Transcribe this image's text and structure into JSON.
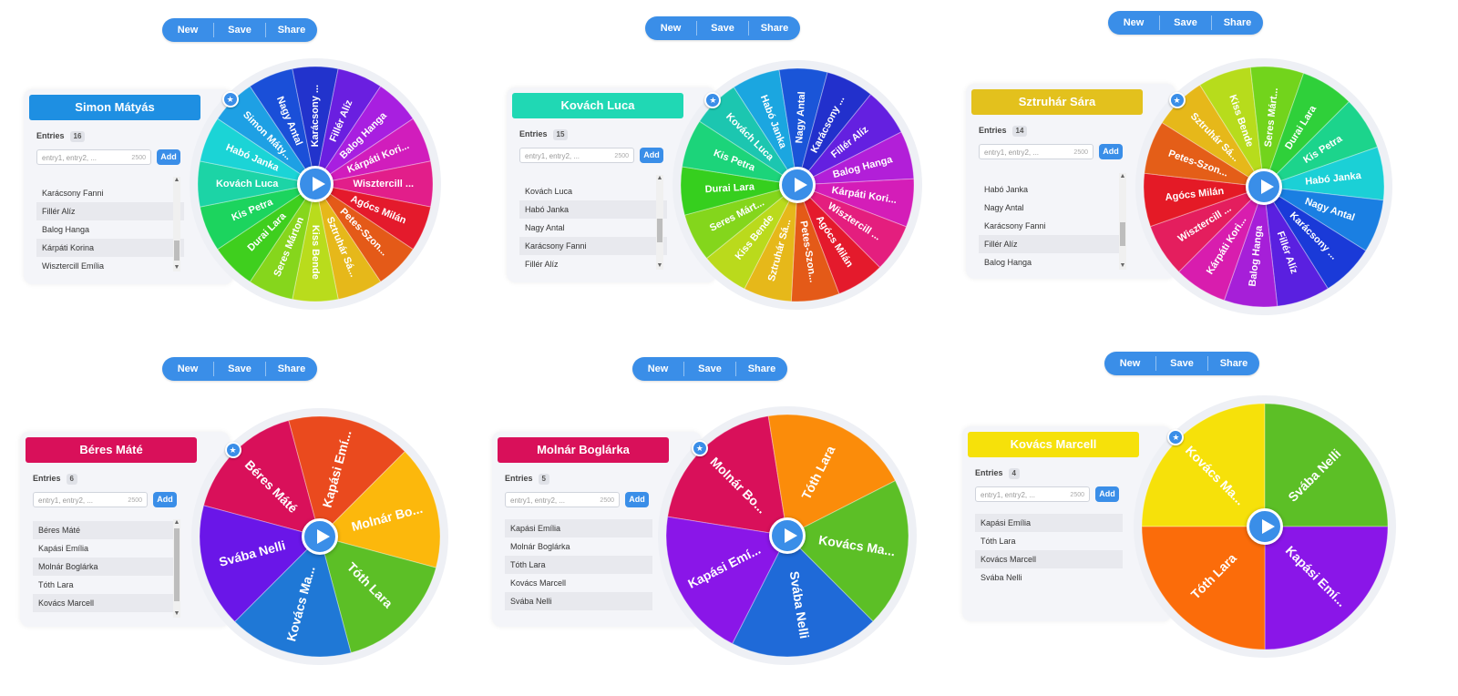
{
  "toolbar": {
    "new_label": "New",
    "save_label": "Save",
    "share_label": "Share"
  },
  "input_placeholder": "entry1, entry2, ...",
  "input_cap": "2500",
  "entries_label": "Entries",
  "add_label": "Add",
  "colors": {
    "accent": "#3a8ee8",
    "card_bg": "#f4f5f9"
  },
  "panels": [
    {
      "winner": "Simon Mátyás",
      "winner_color": "#1e8fe2",
      "count": "16",
      "list_partial": "Fillér Alíz",
      "list": [
        "Karácsony Fanni",
        "Fillér Alíz",
        "Balog Hanga",
        "Kárpáti Korina",
        "Wisztercill Emília"
      ],
      "segments": [
        {
          "label": "Simon Máty...",
          "color": "#1ea0e4"
        },
        {
          "label": "Nagy Antal",
          "color": "#1a4fd8"
        },
        {
          "label": "Karácsony ...",
          "color": "#2233cc"
        },
        {
          "label": "Fillér Alíz",
          "color": "#6a1fe0"
        },
        {
          "label": "Balog Hanga",
          "color": "#a81fe0"
        },
        {
          "label": "Kárpáti Kori...",
          "color": "#d11dbc"
        },
        {
          "label": "Wisztercill ...",
          "color": "#e21e8a"
        },
        {
          "label": "Agócs Milán",
          "color": "#e41a2c"
        },
        {
          "label": "Petes-Szon...",
          "color": "#e45a18"
        },
        {
          "label": "Sztruhár Sá...",
          "color": "#e6b81a"
        },
        {
          "label": "Kiss Bende",
          "color": "#b9dc1c"
        },
        {
          "label": "Seres Márton",
          "color": "#86d61c"
        },
        {
          "label": "Durai Lara",
          "color": "#3fcf1e"
        },
        {
          "label": "Kis Petra",
          "color": "#1cd45e"
        },
        {
          "label": "Kovách Luca",
          "color": "#1cd4a6"
        },
        {
          "label": "Habó Janka",
          "color": "#1bd4d6"
        }
      ]
    },
    {
      "winner": "Kovách Luca",
      "winner_color": "#20d8b4",
      "count": "15",
      "list_partial": "",
      "list": [
        "Kovách Luca",
        "Habó Janka",
        "Nagy Antal",
        "Karácsony Fanni",
        "Fillér Alíz"
      ],
      "segments": [
        {
          "label": "Kovách Luca",
          "color": "#1cc6b0"
        },
        {
          "label": "Habó Janka",
          "color": "#1ba6e0"
        },
        {
          "label": "Nagy Antal",
          "color": "#1a55d8"
        },
        {
          "label": "Karácsony ...",
          "color": "#2230cc"
        },
        {
          "label": "Fillér Alíz",
          "color": "#6420e0"
        },
        {
          "label": "Balog Hanga",
          "color": "#b21fd8"
        },
        {
          "label": "Kárpáti Kori...",
          "color": "#d41db8"
        },
        {
          "label": "Wisztercill ...",
          "color": "#e41e7e"
        },
        {
          "label": "Agócs Milán",
          "color": "#e41a2c"
        },
        {
          "label": "Petes-Szon...",
          "color": "#e45a18"
        },
        {
          "label": "Sztruhár Sá...",
          "color": "#e6b81a"
        },
        {
          "label": "Kiss Bende",
          "color": "#bada1c"
        },
        {
          "label": "Seres Márt...",
          "color": "#84d61c"
        },
        {
          "label": "Durai Lara",
          "color": "#36cf1e"
        },
        {
          "label": "Kis Petra",
          "color": "#1cd47a"
        }
      ]
    },
    {
      "winner": "Sztruhár Sára",
      "winner_color": "#e3c11d",
      "count": "14",
      "list_partial": "",
      "list": [
        "Habó Janka",
        "Nagy Antal",
        "Karácsony Fanni",
        "Fillér Alíz",
        "Balog Hanga"
      ],
      "segments": [
        {
          "label": "Sztruhár Sá...",
          "color": "#e6b81a"
        },
        {
          "label": "Kiss Bende",
          "color": "#b7dc1c"
        },
        {
          "label": "Seres Márt...",
          "color": "#72d41c"
        },
        {
          "label": "Durai Lara",
          "color": "#2fd03a"
        },
        {
          "label": "Kis Petra",
          "color": "#1cd48c"
        },
        {
          "label": "Habó Janka",
          "color": "#1bd0d6"
        },
        {
          "label": "Nagy Antal",
          "color": "#1a7fe2"
        },
        {
          "label": "Karácsony ...",
          "color": "#1a3ad8"
        },
        {
          "label": "Fillér Alíz",
          "color": "#5a20e0"
        },
        {
          "label": "Balog Hanga",
          "color": "#a61fd8"
        },
        {
          "label": "Kárpáti Kori...",
          "color": "#d81dae"
        },
        {
          "label": "Wisztercill ...",
          "color": "#e41e5e"
        },
        {
          "label": "Agócs Milán",
          "color": "#e41a26"
        },
        {
          "label": "Petes-Szon...",
          "color": "#e45e18"
        }
      ]
    },
    {
      "winner": "Béres Máté",
      "winner_color": "#d9105a",
      "count": "6",
      "list_partial": "",
      "list": [
        "Béres Máté",
        "Kapási Emília",
        "Molnár Boglárka",
        "Tóth Lara",
        "Kovács Marcell"
      ],
      "segments": [
        {
          "label": "Béres Máté",
          "color": "#d9105a"
        },
        {
          "label": "Kapási Emí...",
          "color": "#ea4a1e"
        },
        {
          "label": "Molnár Bo...",
          "color": "#fcb80c"
        },
        {
          "label": "Tóth Lara",
          "color": "#5cbf26"
        },
        {
          "label": "Kovács Ma...",
          "color": "#1f78d6"
        },
        {
          "label": "Svába Nelli",
          "color": "#6a16e8"
        }
      ]
    },
    {
      "winner": "Molnár Boglárka",
      "winner_color": "#d9105a",
      "count": "5",
      "list_partial": "",
      "list": [
        "Kapási Emília",
        "Molnár Boglárka",
        "Tóth Lara",
        "Kovács Marcell",
        "Svába Nelli"
      ],
      "segments": [
        {
          "label": "Molnár Bo...",
          "color": "#d9105a"
        },
        {
          "label": "Tóth Lara",
          "color": "#fb8c0a"
        },
        {
          "label": "Kovács Ma...",
          "color": "#5cbf26"
        },
        {
          "label": "Svába Nelli",
          "color": "#1f6ad8"
        },
        {
          "label": "Kapási Emí...",
          "color": "#8a16e8"
        }
      ]
    },
    {
      "winner": "Kovács Marcell",
      "winner_color": "#f6e10a",
      "count": "4",
      "list_partial": "",
      "list": [
        "Kapási Emília",
        "Tóth Lara",
        "Kovács Marcell",
        "Svába Nelli"
      ],
      "segments": [
        {
          "label": "Kovács Ma...",
          "color": "#f6e10a"
        },
        {
          "label": "Svába Nelli",
          "color": "#5cbf26"
        },
        {
          "label": "Kapási Emí...",
          "color": "#8a16e8"
        },
        {
          "label": "Tóth Lara",
          "color": "#fb6c0a"
        }
      ]
    }
  ]
}
